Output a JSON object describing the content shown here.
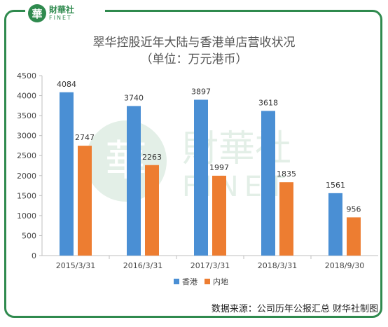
{
  "brand": {
    "mark": "華",
    "name_cn": "財華社",
    "name_en": "FINET"
  },
  "watermark": {
    "mark": "華",
    "name_cn": "財華社",
    "name_en": "FINET"
  },
  "source_note": "数据来源：公司历年公报汇总   财华社制图",
  "chart_data": {
    "type": "bar",
    "title": "翠华控股近年大陆与香港单店营收状况",
    "subtitle": "（单位：万元港币）",
    "categories": [
      "2015/3/31",
      "2016/3/31",
      "2017/3/31",
      "2018/3/31",
      "2018/9/30"
    ],
    "series": [
      {
        "name": "香港",
        "values": [
          4084,
          3740,
          3897,
          3618,
          1561
        ],
        "color": "#4a8fd4"
      },
      {
        "name": "内地",
        "values": [
          2747,
          2263,
          1997,
          1835,
          956
        ],
        "color": "#ed7d31"
      }
    ],
    "ylim": [
      0,
      4500
    ],
    "yticks": [
      0,
      500,
      1000,
      1500,
      2000,
      2500,
      3000,
      3500,
      4000,
      4500
    ],
    "legend": "bottom",
    "grid": false
  }
}
